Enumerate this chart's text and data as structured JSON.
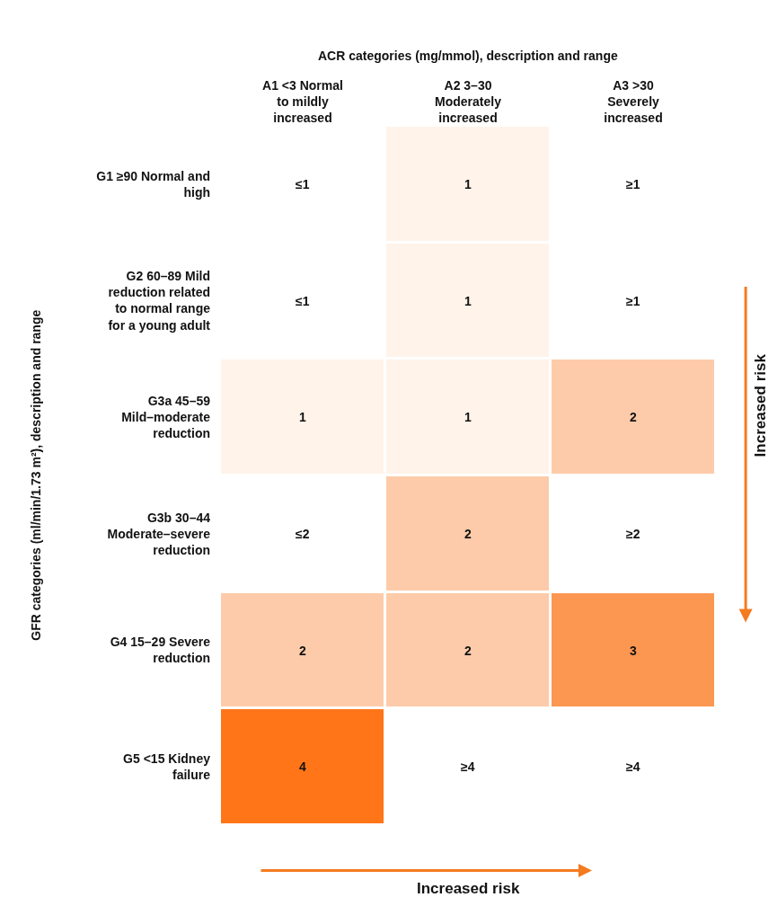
{
  "chart_data": {
    "type": "heatmap",
    "xlabel": "ACR categories (mg/mmol), description and range",
    "ylabel": "GFR categories (ml/min/1.73 m²), description and range",
    "categories": [
      "A1 <3 Normal to mildly increased",
      "A2 3–30 Moderately increased",
      "A3 >30 Severely increased"
    ],
    "y_categories": [
      "G1 ≥90 Normal and high",
      "G2 60–89 Mild reduction related to normal range for a young adult",
      "G3a 45–59 Mild–moderate reduction",
      "G3b 30–44 Moderate–severe reduction",
      "G4 15–29 Severe reduction",
      "G5 <15 Kidney failure"
    ],
    "cells": [
      [
        null,
        1,
        null
      ],
      [
        null,
        1,
        null
      ],
      [
        1,
        1,
        2
      ],
      [
        null,
        2,
        null
      ],
      [
        2,
        2,
        3
      ],
      [
        4,
        null,
        null
      ]
    ],
    "cell_labels": [
      [
        "≤1",
        "1",
        "≥1"
      ],
      [
        "≤1",
        "1",
        "≥1"
      ],
      [
        "1",
        "1",
        "2"
      ],
      [
        "≤2",
        "2",
        "≥2"
      ],
      [
        "2",
        "2",
        "3"
      ],
      [
        "4",
        "≥4",
        "≥4"
      ]
    ],
    "annotations": [
      "Increased risk",
      "Increased risk"
    ]
  }
}
